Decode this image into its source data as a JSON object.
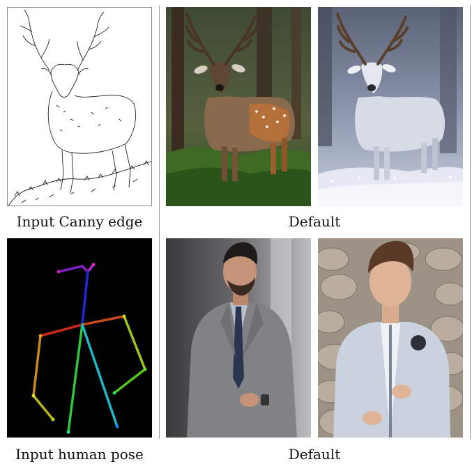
{
  "rows": [
    {
      "input_caption": "Input Canny edge",
      "output_caption": "Default",
      "input_icon": "deer-edge-map-image",
      "outputs": [
        "deer-forest-image",
        "deer-snow-image"
      ]
    },
    {
      "input_caption": "Input human pose",
      "output_caption": "Default",
      "input_icon": "human-pose-skeleton-image",
      "outputs": [
        "man-in-suit-image",
        "boy-in-jacket-image"
      ]
    }
  ],
  "colors": {
    "background": "#ffffff",
    "divider": "#9a9a9a",
    "pose_background": "#000000"
  }
}
